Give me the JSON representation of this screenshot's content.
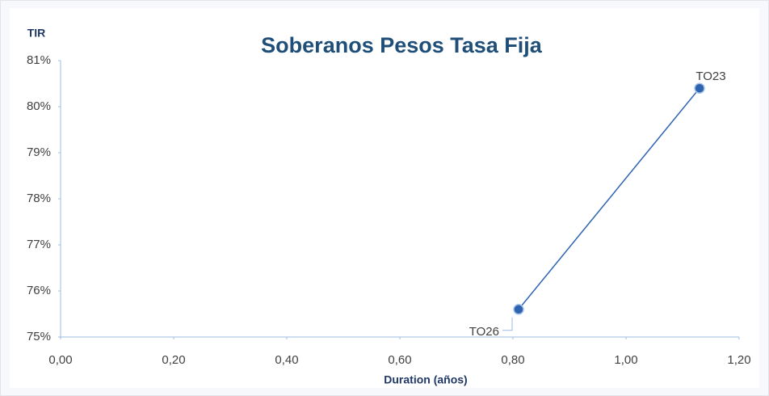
{
  "chart_data": {
    "type": "line",
    "title": "Soberanos Pesos Tasa Fija",
    "y_label": "TIR",
    "x_label": "Duration (años)",
    "x": [
      0.81,
      1.13
    ],
    "values": [
      75.6,
      80.4
    ],
    "labels": [
      "TO26",
      "TO23"
    ],
    "color": "#2e63b0",
    "xlim": [
      0,
      1.2
    ],
    "xticks": [
      {
        "value": 0,
        "label": "0,00"
      },
      {
        "value": 0.2,
        "label": "0,20"
      },
      {
        "value": 0.4,
        "label": "0,40"
      },
      {
        "value": 0.6,
        "label": "0,60"
      },
      {
        "value": 0.8,
        "label": "0,80"
      },
      {
        "value": 1.0,
        "label": "1,00"
      },
      {
        "value": 1.2,
        "label": "1,20"
      }
    ],
    "ylim": [
      75,
      81
    ],
    "yticks": [
      {
        "value": 75,
        "label": "75%"
      },
      {
        "value": 76,
        "label": "76%"
      },
      {
        "value": 77,
        "label": "77%"
      },
      {
        "value": 78,
        "label": "78%"
      },
      {
        "value": 79,
        "label": "79%"
      },
      {
        "value": 80,
        "label": "80%"
      },
      {
        "value": 81,
        "label": "81%"
      }
    ],
    "grid": false
  }
}
